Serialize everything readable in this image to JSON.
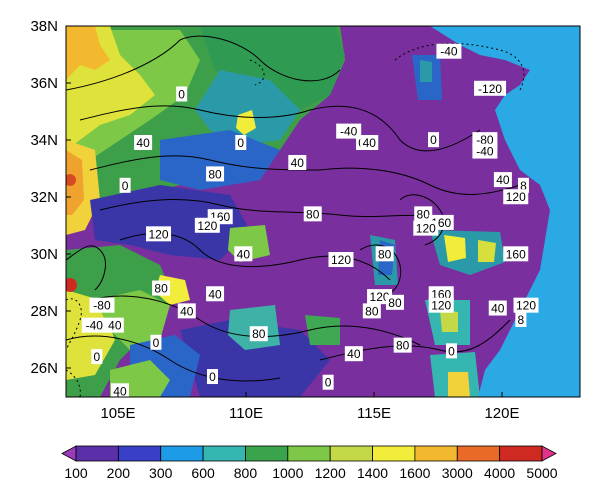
{
  "map": {
    "lat_labels": [
      "38N",
      "36N",
      "34N",
      "32N",
      "30N",
      "28N",
      "26N"
    ],
    "lon_labels": [
      "105E",
      "110E",
      "115E",
      "120E"
    ],
    "extent": {
      "lon": [
        103,
        123
      ],
      "lat": [
        25,
        38
      ]
    },
    "contour_labels": [
      {
        "text": "-40",
        "lon": 117.9,
        "lat": 37.1
      },
      {
        "text": "-120",
        "lon": 119.5,
        "lat": 35.8
      },
      {
        "text": "-40",
        "lon": 114.0,
        "lat": 34.3
      },
      {
        "text": "-80",
        "lon": 119.3,
        "lat": 34.0
      },
      {
        "text": "-40",
        "lon": 119.3,
        "lat": 33.6
      },
      {
        "text": "0",
        "lon": 107.5,
        "lat": 35.6
      },
      {
        "text": "0",
        "lon": 109.8,
        "lat": 33.9
      },
      {
        "text": "0",
        "lon": 114.5,
        "lat": 33.9
      },
      {
        "text": "40",
        "lon": 114.8,
        "lat": 33.9
      },
      {
        "text": "0",
        "lon": 117.3,
        "lat": 34.0
      },
      {
        "text": "40",
        "lon": 106.0,
        "lat": 33.9
      },
      {
        "text": "40",
        "lon": 112.0,
        "lat": 33.2
      },
      {
        "text": "80",
        "lon": 108.8,
        "lat": 32.8
      },
      {
        "text": "0",
        "lon": 105.3,
        "lat": 32.4
      },
      {
        "text": "40",
        "lon": 120.0,
        "lat": 32.6
      },
      {
        "text": "8",
        "lon": 120.8,
        "lat": 32.4
      },
      {
        "text": "120",
        "lon": 120.5,
        "lat": 32.0
      },
      {
        "text": "160",
        "lon": 109.0,
        "lat": 31.3
      },
      {
        "text": "120",
        "lon": 108.5,
        "lat": 31.0
      },
      {
        "text": "80",
        "lon": 112.6,
        "lat": 31.4
      },
      {
        "text": "80",
        "lon": 116.9,
        "lat": 31.4
      },
      {
        "text": "160",
        "lon": 117.6,
        "lat": 31.1
      },
      {
        "text": "120",
        "lon": 117.0,
        "lat": 30.9
      },
      {
        "text": "120",
        "lon": 106.6,
        "lat": 30.7
      },
      {
        "text": "40",
        "lon": 109.9,
        "lat": 30.0
      },
      {
        "text": "120",
        "lon": 113.7,
        "lat": 29.8
      },
      {
        "text": "80",
        "lon": 115.4,
        "lat": 30.0
      },
      {
        "text": "160",
        "lon": 120.5,
        "lat": 30.0
      },
      {
        "text": "80",
        "lon": 106.7,
        "lat": 28.8
      },
      {
        "text": "40",
        "lon": 108.8,
        "lat": 28.6
      },
      {
        "text": "160",
        "lon": 117.6,
        "lat": 28.6
      },
      {
        "text": "120",
        "lon": 115.2,
        "lat": 28.5
      },
      {
        "text": "80",
        "lon": 115.8,
        "lat": 28.3
      },
      {
        "text": "120",
        "lon": 117.6,
        "lat": 28.2
      },
      {
        "text": "-80",
        "lon": 104.4,
        "lat": 28.2
      },
      {
        "text": "40",
        "lon": 107.7,
        "lat": 28.0
      },
      {
        "text": "80",
        "lon": 114.9,
        "lat": 28.0
      },
      {
        "text": "40",
        "lon": 119.8,
        "lat": 28.1
      },
      {
        "text": "120",
        "lon": 120.9,
        "lat": 28.2
      },
      {
        "text": "-40",
        "lon": 104.1,
        "lat": 27.5
      },
      {
        "text": "40",
        "lon": 104.9,
        "lat": 27.5
      },
      {
        "text": "8",
        "lon": 120.7,
        "lat": 27.7
      },
      {
        "text": "0",
        "lon": 106.5,
        "lat": 26.9
      },
      {
        "text": "80",
        "lon": 110.5,
        "lat": 27.2
      },
      {
        "text": "40",
        "lon": 114.2,
        "lat": 26.5
      },
      {
        "text": "80",
        "lon": 116.1,
        "lat": 26.8
      },
      {
        "text": "0",
        "lon": 118.0,
        "lat": 26.6
      },
      {
        "text": "0",
        "lon": 104.2,
        "lat": 26.4
      },
      {
        "text": "0",
        "lon": 108.7,
        "lat": 25.7
      },
      {
        "text": "0",
        "lon": 113.2,
        "lat": 25.5
      },
      {
        "text": "40",
        "lon": 105.1,
        "lat": 25.2
      }
    ]
  },
  "colorbar": {
    "labels": [
      "100",
      "200",
      "300",
      "600",
      "800",
      "1000",
      "1200",
      "1400",
      "1600",
      "3000",
      "4000",
      "5000"
    ],
    "colors": [
      "#9b3bb6",
      "#5a2fa8",
      "#3a3fc8",
      "#1e9be6",
      "#36b6b0",
      "#39a44c",
      "#7dc846",
      "#c4d848",
      "#f2ec3a",
      "#f2b92e",
      "#e86a26",
      "#cf2a22",
      "#e0338a"
    ]
  },
  "colors": {
    "sea": "#2aa9e4",
    "grid": "#000000"
  }
}
